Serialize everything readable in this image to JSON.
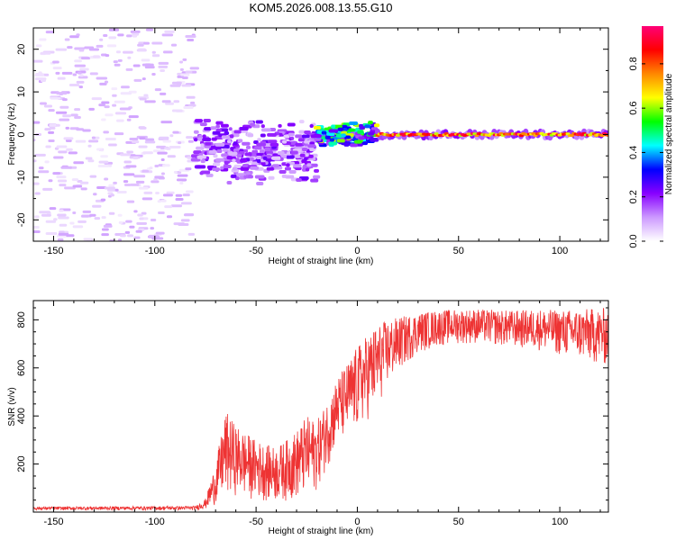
{
  "title": "KOM5.2026.008.13.55.G10",
  "colors": {
    "spectrogram_points": "#b07cff",
    "spectrogram_dense": "#4400cc",
    "snr_line": "#ee3333",
    "axes": "#000000"
  },
  "chart_data": [
    {
      "type": "heatmap",
      "name": "spectrogram",
      "xlabel": "Height of straight line (km)",
      "ylabel": "Frequency (Hz)",
      "xlim": [
        -160,
        124
      ],
      "ylim": [
        -25,
        25
      ],
      "xticks": [
        -150,
        -100,
        -50,
        0,
        50,
        100
      ],
      "yticks": [
        -20,
        -10,
        0,
        10,
        20
      ],
      "xtick_labels": [
        "-150",
        "-100",
        "-50",
        "0",
        "50",
        "100"
      ],
      "ytick_labels": [
        "-20",
        "-10",
        "0",
        "10",
        "20"
      ],
      "colorbar": {
        "label": "Normalized spectral amplitude",
        "range": [
          0,
          0.97
        ],
        "ticks": [
          0.0,
          0.2,
          0.4,
          0.6,
          0.8
        ],
        "tick_labels": [
          "0.0",
          "0.2",
          "0.4",
          "0.6",
          "0.8"
        ],
        "colormap": [
          "#ffffff",
          "#cc99ff",
          "#8800ff",
          "#0000ff",
          "#00ffff",
          "#00ff00",
          "#ffff00",
          "#ff8800",
          "#ff0000",
          "#ff0077"
        ]
      },
      "regions": [
        {
          "x": [
            -160,
            -80
          ],
          "freq_center": 0,
          "freq_spread": 25,
          "amplitude": 0.05,
          "description_level": "scattered noise"
        },
        {
          "x": [
            -80,
            -20
          ],
          "freq_center": -4,
          "freq_spread": 8,
          "amplitude": 0.2
        },
        {
          "x": [
            -20,
            10
          ],
          "freq_center": 0,
          "freq_spread": 3,
          "amplitude": 0.5
        },
        {
          "x": [
            10,
            124
          ],
          "freq_center": 0,
          "freq_spread": 1,
          "amplitude": 0.85
        }
      ]
    },
    {
      "type": "line",
      "name": "snr",
      "xlabel": "Height of straight line (km)",
      "ylabel": "SNR (v/v)",
      "xlim": [
        -160,
        124
      ],
      "ylim": [
        0,
        880
      ],
      "xticks": [
        -150,
        -100,
        -50,
        0,
        50,
        100
      ],
      "yticks": [
        200,
        400,
        600,
        800
      ],
      "xtick_labels": [
        "-150",
        "-100",
        "-50",
        "0",
        "50",
        "100"
      ],
      "ytick_labels": [
        "200",
        "400",
        "600",
        "800"
      ],
      "envelope": {
        "x": [
          -160,
          -80,
          -75,
          -70,
          -65,
          -60,
          -55,
          -50,
          -45,
          -40,
          -35,
          -30,
          -25,
          -20,
          -15,
          -10,
          -5,
          0,
          5,
          10,
          15,
          20,
          25,
          30,
          40,
          50,
          60,
          70,
          80,
          90,
          100,
          110,
          124
        ],
        "low": [
          8,
          8,
          12,
          30,
          60,
          70,
          55,
          50,
          45,
          40,
          45,
          50,
          60,
          90,
          180,
          280,
          300,
          330,
          380,
          430,
          520,
          580,
          620,
          660,
          690,
          700,
          700,
          690,
          680,
          670,
          650,
          630,
          600
        ],
        "high": [
          22,
          25,
          55,
          200,
          420,
          360,
          330,
          300,
          280,
          270,
          300,
          340,
          400,
          380,
          460,
          560,
          620,
          690,
          740,
          780,
          800,
          810,
          820,
          830,
          840,
          845,
          845,
          840,
          840,
          845,
          840,
          845,
          850
        ]
      }
    }
  ]
}
